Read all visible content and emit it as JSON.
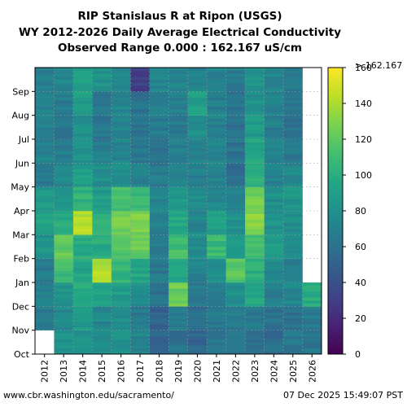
{
  "chart_data": {
    "type": "heatmap",
    "title": [
      "RIP Stanislaus R at Ripon (USGS)",
      "WY 2012-2026 Daily Average Electrical Conductivity",
      "Observed Range 0.000 : 162.167 uS/cm"
    ],
    "xlabel": "",
    "ylabel": "",
    "x_categories": [
      "2012",
      "2013",
      "2014",
      "2015",
      "2016",
      "2017",
      "2018",
      "2019",
      "2020",
      "2021",
      "2022",
      "2023",
      "2024",
      "2025",
      "2026"
    ],
    "y_months": [
      "Oct",
      "Nov",
      "Dec",
      "Jan",
      "Feb",
      "Mar",
      "Apr",
      "May",
      "Jun",
      "Jul",
      "Aug",
      "Sep"
    ],
    "colorbar": {
      "colormap": "viridis",
      "range": [
        0,
        160
      ],
      "ticks": [
        "0",
        "20",
        "40",
        "60",
        "80",
        "100",
        "120",
        "140",
        "160"
      ],
      "max_label": "> 162.167"
    },
    "grid": true,
    "monthly_values": {
      "2012": [
        null,
        64,
        70,
        66,
        82,
        92,
        86,
        66,
        72,
        70,
        72,
        68
      ],
      "2013": [
        80,
        76,
        82,
        110,
        122,
        98,
        84,
        74,
        68,
        64,
        66,
        72
      ],
      "2014": [
        82,
        88,
        96,
        94,
        98,
        140,
        104,
        88,
        80,
        80,
        90,
        92
      ],
      "2015": [
        78,
        74,
        90,
        142,
        98,
        100,
        88,
        78,
        68,
        64,
        66,
        82
      ],
      "2016": [
        82,
        80,
        88,
        104,
        118,
        126,
        112,
        76,
        72,
        74,
        72,
        72
      ],
      "2017": [
        72,
        66,
        80,
        96,
        122,
        128,
        110,
        70,
        64,
        60,
        60,
        30
      ],
      "2018": [
        52,
        52,
        60,
        64,
        64,
        68,
        72,
        66,
        62,
        66,
        68,
        72
      ],
      "2019": [
        60,
        66,
        124,
        92,
        112,
        96,
        88,
        72,
        68,
        66,
        70,
        72
      ],
      "2020": [
        54,
        58,
        68,
        72,
        78,
        74,
        76,
        70,
        70,
        80,
        90,
        72
      ],
      "2021": [
        62,
        64,
        70,
        80,
        108,
        88,
        74,
        70,
        70,
        70,
        68,
        72
      ],
      "2022": [
        64,
        66,
        80,
        118,
        86,
        80,
        70,
        58,
        62,
        60,
        62,
        66
      ],
      "2023": [
        62,
        64,
        96,
        100,
        110,
        132,
        126,
        100,
        94,
        86,
        82,
        82
      ],
      "2024": [
        58,
        62,
        68,
        76,
        90,
        82,
        80,
        70,
        72,
        68,
        70,
        74
      ],
      "2025": [
        64,
        62,
        74,
        70,
        80,
        78,
        84,
        74,
        62,
        60,
        64,
        68
      ],
      "2026": [
        62,
        66,
        100,
        null,
        null,
        null,
        null,
        null,
        null,
        null,
        null,
        null
      ]
    },
    "observed_range": [
      0.0,
      162.167
    ],
    "units": "uS/cm"
  },
  "footer": {
    "source": "www.cbr.washington.edu/sacramento/",
    "timestamp": "07 Dec 2025 15:49:07 PST"
  }
}
